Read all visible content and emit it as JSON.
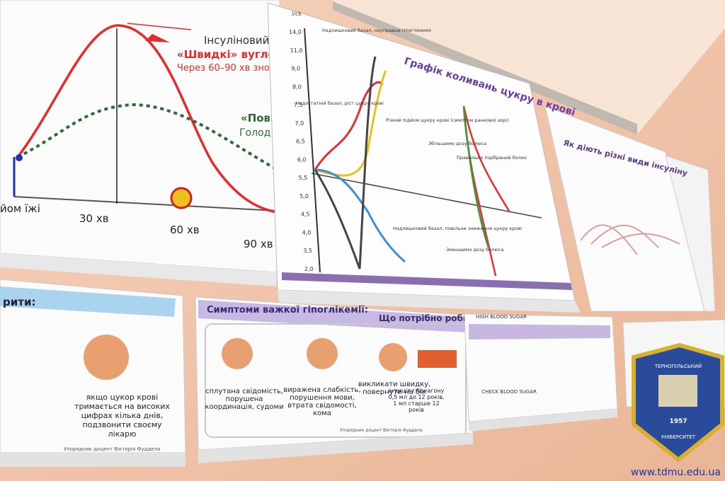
{
  "poster_top_left": {
    "insulin": "Інсуліновий",
    "fast_carbs": "«Швидкі» вуглеводи",
    "after": "Через 60–90 хв знов",
    "slow": "«Повіль",
    "hunger": "Голод в",
    "meal": "йом їжі",
    "t30": "30 хв",
    "t60": "60 хв",
    "t90": "90 хв"
  },
  "poster_chart": {
    "title": "Графік коливань цукру в крові",
    "unit": "l/ck",
    "yticks": [
      "14,0",
      "11,0",
      "9,0",
      "8,0",
      "7,5",
      "7,0",
      "6,5",
      "6,0",
      "5,5",
      "5,0",
      "4,5",
      "4,0",
      "3,5",
      "2,0"
    ],
    "notes": [
      "Надлишковий базал, неуправна гіпоглікемія",
      "Недостатній базал, ріст цукру крові",
      "Різкий підйом цукру крові (симптом ранкової зорі)",
      "Збільшимо дозу болюса",
      "Правильно підібраний болюс",
      "Надлишковий базал, повільне зниження цукру крові",
      "Зменшимо дозу болюса"
    ]
  },
  "poster_right": {
    "title": "Як діють різні види інсуліну"
  },
  "poster_bottom_left": {
    "header": "рити:",
    "text": "якщо цукор крові тримається на високих цифрах кілька днів, подзвонити своєму лікарю",
    "author": "Упорядник доцент Вікторія Фуддела"
  },
  "poster_bottom_center": {
    "header": "Симптоми важкої гіпоглікемії:",
    "header_right": "Що потрібно робити:",
    "items": [
      "сплутана свідомість, порушена координація, судоми",
      "виражена слабкість, порушення мови, втрата свідомості, кома",
      "викликати швидку, повернути на бік",
      "ін'єкція глюкагону 0,5 мл до 12 років, 1 мл старше 12 років"
    ],
    "author": "Упорядник доцент Вікторія Фуддела"
  },
  "poster_bottom_right": {
    "header": "HIGH BLOOD SUGAR",
    "action": "CHECK BLOOD SUGAR"
  },
  "logo": {
    "top": "ТЕРНОПІЛЬСЬКИЙ",
    "bottom": "УНІВЕРСИТЕТ",
    "year": "1957"
  },
  "watermark": "www.tdmu.edu.ua"
}
